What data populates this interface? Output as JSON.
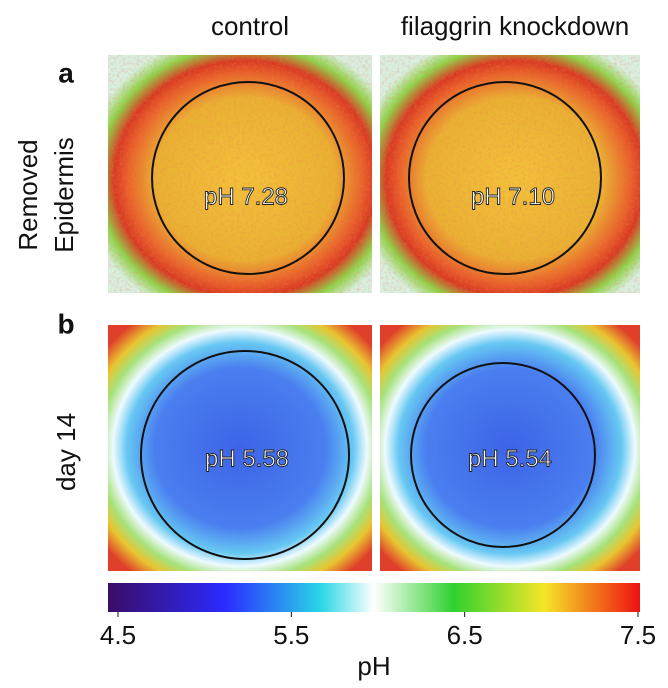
{
  "columns": [
    "control",
    "filaggrin knockdown"
  ],
  "rows": [
    {
      "letter": "a",
      "label_lines": [
        "Removed",
        "Epidermis"
      ],
      "panels": [
        "pH 7.28",
        "pH 7.10"
      ]
    },
    {
      "letter": "b",
      "label_lines": [
        "day 14"
      ],
      "panels": [
        "pH 5.58",
        "pH 5.54"
      ]
    }
  ],
  "colorbar": {
    "lim": [
      4.5,
      7.5
    ],
    "ticks": [
      4.5,
      5.5,
      6.5,
      7.5
    ],
    "label": "pH"
  }
}
